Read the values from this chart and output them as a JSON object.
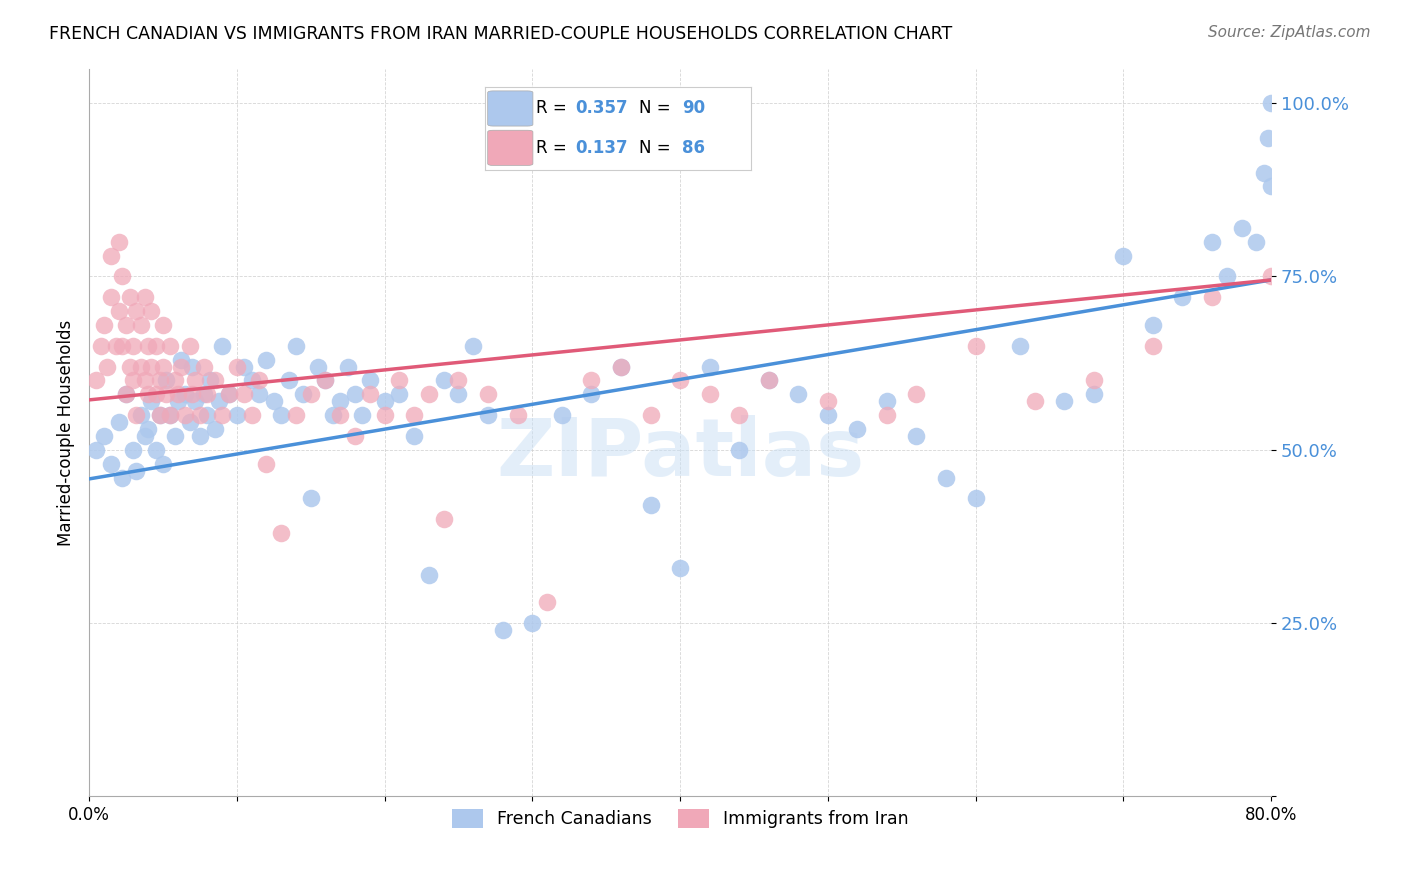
{
  "title": "FRENCH CANADIAN VS IMMIGRANTS FROM IRAN MARRIED-COUPLE HOUSEHOLDS CORRELATION CHART",
  "source": "Source: ZipAtlas.com",
  "ylabel": "Married-couple Households",
  "xmin": 0.0,
  "xmax": 0.8,
  "ymin": 0.0,
  "ymax": 1.05,
  "ytick_vals": [
    0.0,
    0.25,
    0.5,
    0.75,
    1.0
  ],
  "ytick_labels": [
    "",
    "25.0%",
    "50.0%",
    "75.0%",
    "100.0%"
  ],
  "xtick_vals": [
    0.0,
    0.1,
    0.2,
    0.3,
    0.4,
    0.5,
    0.6,
    0.7,
    0.8
  ],
  "xtick_labels": [
    "0.0%",
    "",
    "",
    "",
    "",
    "",
    "",
    "",
    "80.0%"
  ],
  "blue_color": "#adc8ed",
  "pink_color": "#f0a8b8",
  "blue_line_color": "#4a90d9",
  "pink_line_color": "#e05a78",
  "blue_R": 0.357,
  "blue_N": 90,
  "pink_R": 0.137,
  "pink_N": 86,
  "legend_label_blue": "French Canadians",
  "legend_label_pink": "Immigrants from Iran",
  "watermark": "ZIPatlas",
  "blue_scatter_x": [
    0.005,
    0.01,
    0.015,
    0.02,
    0.022,
    0.025,
    0.03,
    0.032,
    0.035,
    0.038,
    0.04,
    0.042,
    0.045,
    0.048,
    0.05,
    0.052,
    0.055,
    0.058,
    0.06,
    0.062,
    0.065,
    0.068,
    0.07,
    0.072,
    0.075,
    0.078,
    0.08,
    0.082,
    0.085,
    0.088,
    0.09,
    0.095,
    0.1,
    0.105,
    0.11,
    0.115,
    0.12,
    0.125,
    0.13,
    0.135,
    0.14,
    0.145,
    0.15,
    0.155,
    0.16,
    0.165,
    0.17,
    0.175,
    0.18,
    0.185,
    0.19,
    0.2,
    0.21,
    0.22,
    0.23,
    0.24,
    0.25,
    0.26,
    0.27,
    0.28,
    0.3,
    0.32,
    0.34,
    0.36,
    0.38,
    0.4,
    0.42,
    0.44,
    0.46,
    0.48,
    0.5,
    0.52,
    0.54,
    0.56,
    0.58,
    0.6,
    0.63,
    0.66,
    0.68,
    0.7,
    0.72,
    0.74,
    0.76,
    0.77,
    0.78,
    0.79,
    0.795,
    0.798,
    0.8,
    0.8
  ],
  "blue_scatter_y": [
    0.5,
    0.52,
    0.48,
    0.54,
    0.46,
    0.58,
    0.5,
    0.47,
    0.55,
    0.52,
    0.53,
    0.57,
    0.5,
    0.55,
    0.48,
    0.6,
    0.55,
    0.52,
    0.57,
    0.63,
    0.58,
    0.54,
    0.62,
    0.57,
    0.52,
    0.58,
    0.55,
    0.6,
    0.53,
    0.57,
    0.65,
    0.58,
    0.55,
    0.62,
    0.6,
    0.58,
    0.63,
    0.57,
    0.55,
    0.6,
    0.65,
    0.58,
    0.43,
    0.62,
    0.6,
    0.55,
    0.57,
    0.62,
    0.58,
    0.55,
    0.6,
    0.57,
    0.58,
    0.52,
    0.32,
    0.6,
    0.58,
    0.65,
    0.55,
    0.24,
    0.25,
    0.55,
    0.58,
    0.62,
    0.42,
    0.33,
    0.62,
    0.5,
    0.6,
    0.58,
    0.55,
    0.53,
    0.57,
    0.52,
    0.46,
    0.43,
    0.65,
    0.57,
    0.58,
    0.78,
    0.68,
    0.72,
    0.8,
    0.75,
    0.82,
    0.8,
    0.9,
    0.95,
    1.0,
    0.88
  ],
  "pink_scatter_x": [
    0.005,
    0.008,
    0.01,
    0.012,
    0.015,
    0.015,
    0.018,
    0.02,
    0.02,
    0.022,
    0.022,
    0.025,
    0.025,
    0.028,
    0.028,
    0.03,
    0.03,
    0.032,
    0.032,
    0.035,
    0.035,
    0.038,
    0.038,
    0.04,
    0.04,
    0.042,
    0.042,
    0.045,
    0.045,
    0.048,
    0.048,
    0.05,
    0.05,
    0.052,
    0.055,
    0.055,
    0.058,
    0.06,
    0.062,
    0.065,
    0.068,
    0.07,
    0.072,
    0.075,
    0.078,
    0.08,
    0.085,
    0.09,
    0.095,
    0.1,
    0.105,
    0.11,
    0.115,
    0.12,
    0.13,
    0.14,
    0.15,
    0.16,
    0.17,
    0.18,
    0.19,
    0.2,
    0.21,
    0.22,
    0.23,
    0.24,
    0.25,
    0.27,
    0.29,
    0.31,
    0.34,
    0.36,
    0.38,
    0.4,
    0.42,
    0.44,
    0.46,
    0.5,
    0.54,
    0.56,
    0.6,
    0.64,
    0.68,
    0.72,
    0.76,
    0.8
  ],
  "pink_scatter_y": [
    0.6,
    0.65,
    0.68,
    0.62,
    0.72,
    0.78,
    0.65,
    0.7,
    0.8,
    0.65,
    0.75,
    0.68,
    0.58,
    0.62,
    0.72,
    0.6,
    0.65,
    0.7,
    0.55,
    0.62,
    0.68,
    0.6,
    0.72,
    0.58,
    0.65,
    0.62,
    0.7,
    0.58,
    0.65,
    0.6,
    0.55,
    0.62,
    0.68,
    0.58,
    0.65,
    0.55,
    0.6,
    0.58,
    0.62,
    0.55,
    0.65,
    0.58,
    0.6,
    0.55,
    0.62,
    0.58,
    0.6,
    0.55,
    0.58,
    0.62,
    0.58,
    0.55,
    0.6,
    0.48,
    0.38,
    0.55,
    0.58,
    0.6,
    0.55,
    0.52,
    0.58,
    0.55,
    0.6,
    0.55,
    0.58,
    0.4,
    0.6,
    0.58,
    0.55,
    0.28,
    0.6,
    0.62,
    0.55,
    0.6,
    0.58,
    0.55,
    0.6,
    0.57,
    0.55,
    0.58,
    0.65,
    0.57,
    0.6,
    0.65,
    0.72,
    0.75
  ]
}
